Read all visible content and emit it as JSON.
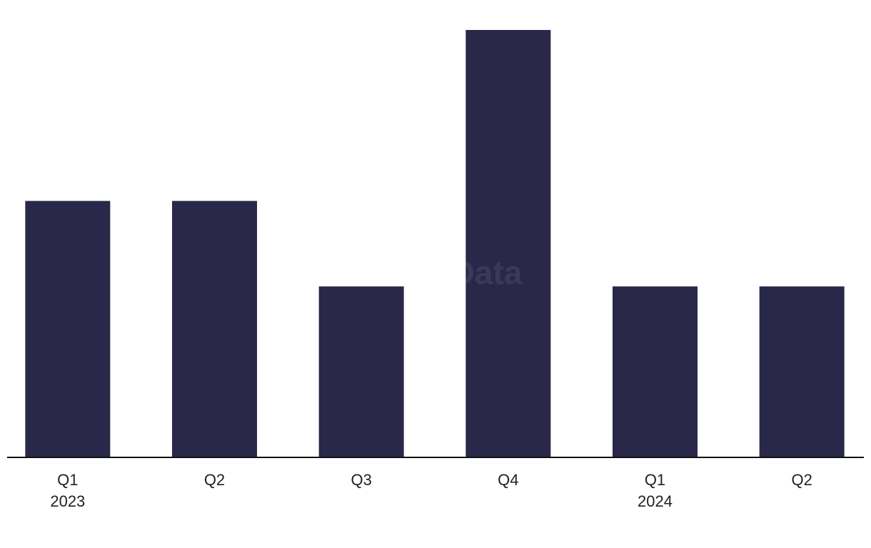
{
  "chart_data": {
    "type": "bar",
    "watermark": "GlobalData",
    "categories": [
      [
        "Q1",
        "2023"
      ],
      [
        "Q2",
        null
      ],
      [
        "Q3",
        null
      ],
      [
        "Q4",
        null
      ],
      [
        "Q1",
        "2024"
      ],
      [
        "Q2",
        null
      ]
    ],
    "values": [
      3,
      3,
      2,
      5,
      2,
      2
    ],
    "color": "#29284a",
    "ylim": [
      0,
      5
    ]
  }
}
